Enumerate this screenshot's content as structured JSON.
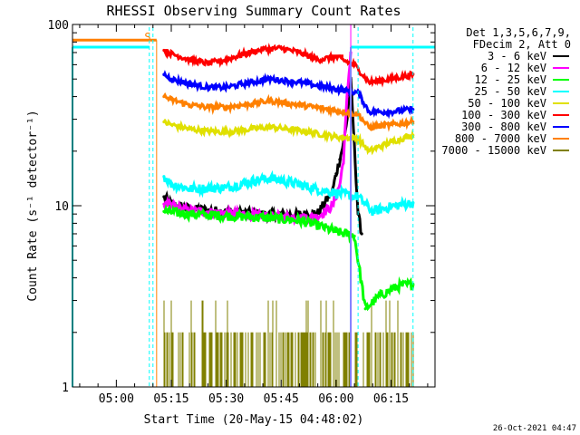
{
  "chart_data": {
    "type": "line",
    "title": "RHESSI Observing Summary Count Rates",
    "xlabel": "Start Time (20-May-15 04:48:02)",
    "ylabel": "Count Rate (s⁻¹ detector⁻¹)",
    "yscale": "log",
    "ylim": [
      1,
      100
    ],
    "xlim": [
      "04:48:02",
      "06:27:00"
    ],
    "x_ticks": [
      "05:00",
      "05:15",
      "05:30",
      "05:45",
      "06:00",
      "06:15"
    ],
    "y_ticks": [
      "1",
      "10",
      "100"
    ],
    "legend_header": [
      "Det 1,3,5,6,7,9,",
      "FDecim 2, Att 0"
    ],
    "legend_position": "right",
    "flag_label": "S",
    "timestamp": "26-Oct-2021 04:47",
    "series": [
      {
        "name": "3 - 6 keV",
        "color": "#000000",
        "points": [
          [
            "05:13",
            11.2
          ],
          [
            "05:15",
            10.2
          ],
          [
            "05:20",
            9.6
          ],
          [
            "05:30",
            9.3
          ],
          [
            "05:40",
            9.0
          ],
          [
            "05:50",
            8.9
          ],
          [
            "05:55",
            9.1
          ],
          [
            "05:59",
            12
          ],
          [
            "06:00",
            15
          ],
          [
            "06:01",
            18
          ],
          [
            "06:02",
            22
          ],
          [
            "06:03",
            30
          ],
          [
            "06:04",
            50
          ],
          [
            "06:06",
            9
          ],
          [
            "06:07",
            7
          ]
        ]
      },
      {
        "name": "6 - 12 keV",
        "color": "#ff00ff",
        "points": [
          [
            "05:13",
            10.2
          ],
          [
            "05:20",
            9.4
          ],
          [
            "05:30",
            9.1
          ],
          [
            "05:40",
            8.8
          ],
          [
            "05:50",
            8.6
          ],
          [
            "05:55",
            8.7
          ],
          [
            "05:59",
            10
          ],
          [
            "06:01",
            13
          ],
          [
            "06:02",
            18
          ],
          [
            "06:03",
            40
          ],
          [
            "06:04",
            70
          ]
        ]
      },
      {
        "name": "12 - 25 keV",
        "color": "#00ff00",
        "points": [
          [
            "05:13",
            9.3
          ],
          [
            "05:20",
            9.0
          ],
          [
            "05:30",
            8.8
          ],
          [
            "05:40",
            8.6
          ],
          [
            "05:50",
            8.3
          ],
          [
            "05:55",
            7.8
          ],
          [
            "06:00",
            7.2
          ],
          [
            "06:05",
            6.8
          ],
          [
            "06:08",
            2.7
          ],
          [
            "06:12",
            3.2
          ],
          [
            "06:17",
            3.6
          ],
          [
            "06:21",
            3.7
          ]
        ]
      },
      {
        "name": "25 - 50 keV",
        "color": "#00ffff",
        "points": [
          [
            "05:13",
            14.5
          ],
          [
            "05:15",
            13.2
          ],
          [
            "05:20",
            12.4
          ],
          [
            "05:30",
            12.6
          ],
          [
            "05:38",
            13.8
          ],
          [
            "05:42",
            14.2
          ],
          [
            "05:48",
            13.4
          ],
          [
            "05:55",
            12.3
          ],
          [
            "06:00",
            11.8
          ],
          [
            "06:06",
            11.2
          ],
          [
            "06:10",
            9.3
          ],
          [
            "06:15",
            9.9
          ],
          [
            "06:21",
            10.4
          ]
        ]
      },
      {
        "name": "50 - 100 keV",
        "color": "#e0e000",
        "points": [
          [
            "05:13",
            29
          ],
          [
            "05:15",
            28
          ],
          [
            "05:20",
            26.5
          ],
          [
            "05:25",
            25.8
          ],
          [
            "05:30",
            25.5
          ],
          [
            "05:37",
            26.5
          ],
          [
            "05:42",
            27.2
          ],
          [
            "05:50",
            26
          ],
          [
            "06:00",
            24
          ],
          [
            "06:06",
            23.5
          ],
          [
            "06:09",
            20
          ],
          [
            "06:15",
            22.5
          ],
          [
            "06:21",
            24.5
          ]
        ]
      },
      {
        "name": "100 - 300 keV",
        "color": "#ff0000",
        "points": [
          [
            "05:13",
            72
          ],
          [
            "05:15",
            69
          ],
          [
            "05:20",
            64
          ],
          [
            "05:25",
            61
          ],
          [
            "05:30",
            64
          ],
          [
            "05:35",
            69
          ],
          [
            "05:40",
            73
          ],
          [
            "05:45",
            74
          ],
          [
            "05:50",
            70
          ],
          [
            "05:55",
            64
          ],
          [
            "06:00",
            66
          ],
          [
            "06:05",
            60
          ],
          [
            "06:09",
            48
          ],
          [
            "06:15",
            50
          ],
          [
            "06:21",
            53
          ]
        ]
      },
      {
        "name": "300 - 800 keV",
        "color": "#0000ff",
        "points": [
          [
            "05:13",
            53
          ],
          [
            "05:15",
            50
          ],
          [
            "05:20",
            47
          ],
          [
            "05:25",
            45
          ],
          [
            "05:30",
            45
          ],
          [
            "05:37",
            48
          ],
          [
            "05:42",
            50
          ],
          [
            "05:50",
            48
          ],
          [
            "06:00",
            44
          ],
          [
            "06:06",
            42
          ],
          [
            "06:09",
            33
          ],
          [
            "06:15",
            33
          ],
          [
            "06:21",
            34
          ]
        ]
      },
      {
        "name": "800 - 7000 keV",
        "color": "#ff8000",
        "points": [
          [
            "05:13",
            40
          ],
          [
            "05:15",
            38.5
          ],
          [
            "05:20",
            36
          ],
          [
            "05:25",
            35
          ],
          [
            "05:30",
            35
          ],
          [
            "05:37",
            36.5
          ],
          [
            "05:42",
            38
          ],
          [
            "05:50",
            36
          ],
          [
            "06:00",
            33.5
          ],
          [
            "06:06",
            32
          ],
          [
            "06:09",
            27
          ],
          [
            "06:15",
            28
          ],
          [
            "06:21",
            29
          ]
        ]
      },
      {
        "name": "7000 - 15000 keV",
        "color": "#808000",
        "points": [
          [
            "05:13",
            1.0
          ],
          [
            "06:21",
            1.0
          ]
        ]
      }
    ]
  }
}
